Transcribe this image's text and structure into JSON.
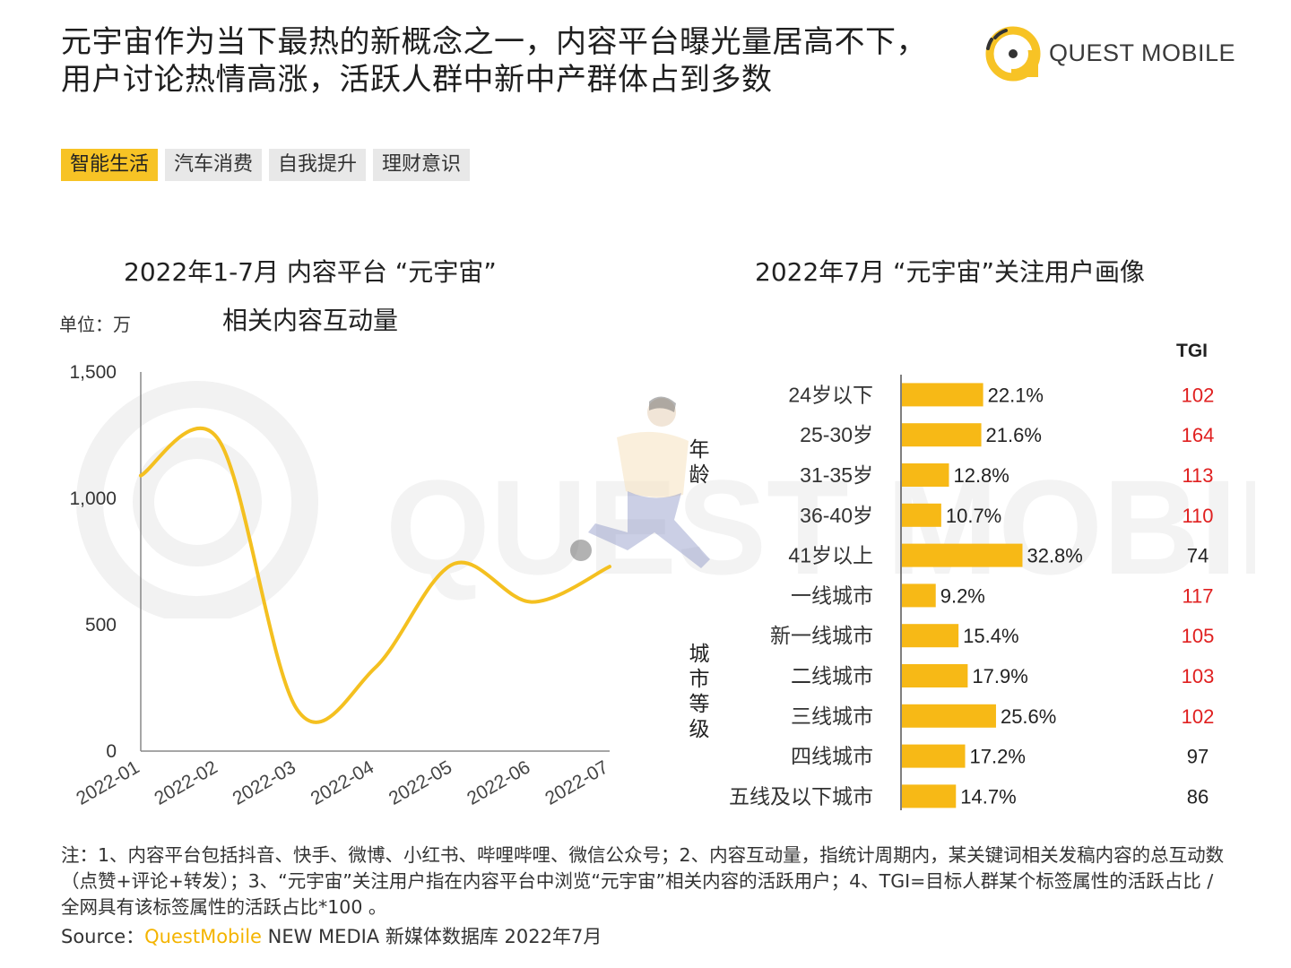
{
  "header": {
    "title_line1": "元宇宙作为当下最热的新概念之一，内容平台曝光量居高不下，",
    "title_line2": "用户讨论热情高涨，活跃人群中新中产群体占到多数",
    "brand": "QUEST MOBILE"
  },
  "tabs": [
    {
      "label": "智能生活",
      "active": true
    },
    {
      "label": "汽车消费",
      "active": false
    },
    {
      "label": "自我提升",
      "active": false
    },
    {
      "label": "理财意识",
      "active": false
    }
  ],
  "colors": {
    "accent": "#f7c325",
    "line": "#f4c020",
    "bar": "#f7b916",
    "tgi_high": "#e02020",
    "tgi_normal": "#222222"
  },
  "left_chart": {
    "title_line1": "2022年1-7月 内容平台 “元宇宙”",
    "title_line2": "相关内容互动量",
    "unit": "单位：万"
  },
  "right_chart": {
    "title": "2022年7月 “元宇宙”关注用户画像",
    "tgi_header": "TGI",
    "group_age": "年龄",
    "group_city": "城市等级"
  },
  "chart_data": [
    {
      "type": "line",
      "x": [
        "2022-01",
        "2022-02",
        "2022-03",
        "2022-04",
        "2022-05",
        "2022-06",
        "2022-07"
      ],
      "y": [
        1090,
        1230,
        165,
        330,
        740,
        590,
        730
      ],
      "ylim": [
        0,
        1500
      ],
      "yticks": [
        "0",
        "500",
        "1,000",
        "1,500"
      ],
      "title": "2022年1-7月 内容平台 “元宇宙” 相关内容互动量",
      "ylabel": "单位：万"
    },
    {
      "type": "bar",
      "orientation": "horizontal",
      "title": "2022年7月 “元宇宙”关注用户画像",
      "categories": [
        "24岁以下",
        "25-30岁",
        "31-35岁",
        "36-40岁",
        "41岁以上",
        "一线城市",
        "新一线城市",
        "二线城市",
        "三线城市",
        "四线城市",
        "五线及以下城市"
      ],
      "values": [
        22.1,
        21.6,
        12.8,
        10.7,
        32.8,
        9.2,
        15.4,
        17.9,
        25.6,
        17.2,
        14.7
      ],
      "labels": [
        "22.1%",
        "21.6%",
        "12.8%",
        "10.7%",
        "32.8%",
        "9.2%",
        "15.4%",
        "17.9%",
        "25.6%",
        "17.2%",
        "14.7%"
      ],
      "tgi": [
        "102",
        "164",
        "113",
        "110",
        "74",
        "117",
        "105",
        "103",
        "102",
        "97",
        "86"
      ],
      "tgi_highlight": [
        true,
        true,
        true,
        true,
        false,
        true,
        true,
        true,
        true,
        false,
        false
      ]
    }
  ],
  "notes": "注：1、内容平台包括抖音、快手、微博、小红书、哔哩哔哩、微信公众号；2、内容互动量，指统计周期内，某关键词相关发稿内容的总互动数（点赞+评论+转发）；3、“元宇宙”关注用户指在内容平台中浏览“元宇宙”相关内容的活跃用户；4、TGI=目标人群某个标签属性的活跃占比 / 全网具有该标签属性的活跃占比*100 。",
  "source": {
    "prefix": "Source：",
    "brand": "QuestMobile",
    "rest": " NEW MEDIA 新媒体数据库 2022年7月"
  }
}
